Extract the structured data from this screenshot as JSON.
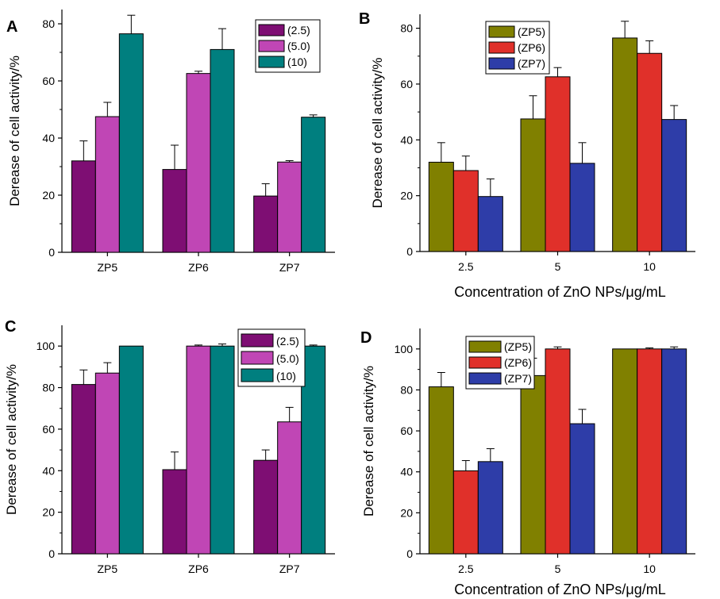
{
  "chart_data": [
    {
      "panel": "A",
      "type": "bar",
      "categories": [
        "ZP5",
        "ZP6",
        "ZP7"
      ],
      "xlabel": "",
      "ylabel": "Derease of cell activity/%",
      "ylim": [
        0,
        85
      ],
      "yticks": [
        0,
        20,
        40,
        60,
        80
      ],
      "legend_position": "top-right",
      "series": [
        {
          "name": "(2.5)",
          "color": "#7e0e73",
          "values": [
            32,
            29,
            19.7
          ],
          "errors": [
            7,
            8.5,
            4.3
          ]
        },
        {
          "name": "(5.0)",
          "color": "#c046b5",
          "values": [
            47.5,
            62.6,
            31.6
          ],
          "errors": [
            5,
            0.8,
            0.5
          ]
        },
        {
          "name": "(10)",
          "color": "#007f7f",
          "values": [
            76.5,
            71,
            47.3
          ],
          "errors": [
            6.5,
            7.3,
            0.8
          ]
        }
      ]
    },
    {
      "panel": "B",
      "type": "bar",
      "categories": [
        "2.5",
        "5",
        "10"
      ],
      "xlabel": "Concentration of ZnO NPs/μg/mL",
      "ylabel": "Derease of cell activity/%",
      "ylim": [
        0,
        85
      ],
      "yticks": [
        0,
        20,
        40,
        60,
        80
      ],
      "legend_position": "top-left",
      "series": [
        {
          "name": "(ZP5)",
          "color": "#808000",
          "values": [
            32,
            47.5,
            76.5
          ],
          "errors": [
            7,
            8.3,
            6
          ]
        },
        {
          "name": "(ZP6)",
          "color": "#e0302a",
          "values": [
            29,
            62.6,
            71
          ],
          "errors": [
            5.2,
            3.3,
            4.5
          ]
        },
        {
          "name": "(ZP7)",
          "color": "#2e3da8",
          "values": [
            19.7,
            31.6,
            47.3
          ],
          "errors": [
            6.3,
            7.4,
            5
          ]
        }
      ]
    },
    {
      "panel": "C",
      "type": "bar",
      "categories": [
        "ZP5",
        "ZP6",
        "ZP7"
      ],
      "xlabel": "",
      "ylabel": "Derease of cell activity/%",
      "ylim": [
        0,
        110
      ],
      "yticks": [
        0,
        20,
        40,
        60,
        80,
        100
      ],
      "legend_position": "top-right",
      "series": [
        {
          "name": "(2.5)",
          "color": "#7e0e73",
          "values": [
            81.5,
            40.5,
            45
          ],
          "errors": [
            7,
            8.5,
            5
          ]
        },
        {
          "name": "(5.0)",
          "color": "#c046b5",
          "values": [
            87,
            100,
            63.5
          ],
          "errors": [
            5,
            0.5,
            7
          ]
        },
        {
          "name": "(10)",
          "color": "#007f7f",
          "values": [
            100,
            100,
            100
          ],
          "errors": [
            0,
            1,
            0.5
          ]
        }
      ]
    },
    {
      "panel": "D",
      "type": "bar",
      "categories": [
        "2.5",
        "5",
        "10"
      ],
      "xlabel": "Concentration of ZnO NPs/μg/mL",
      "ylabel": "Derease of cell activity/%",
      "ylim": [
        0,
        110
      ],
      "yticks": [
        0,
        20,
        40,
        60,
        80,
        100
      ],
      "legend_position": "top-left",
      "series": [
        {
          "name": "(ZP5)",
          "color": "#808000",
          "values": [
            81.5,
            87,
            100
          ],
          "errors": [
            7,
            8.5,
            0
          ]
        },
        {
          "name": "(ZP6)",
          "color": "#e0302a",
          "values": [
            40.5,
            100,
            100
          ],
          "errors": [
            5,
            1,
            0.5
          ]
        },
        {
          "name": "(ZP7)",
          "color": "#2e3da8",
          "values": [
            45,
            63.5,
            100
          ],
          "errors": [
            6.3,
            7,
            1
          ]
        }
      ]
    }
  ]
}
